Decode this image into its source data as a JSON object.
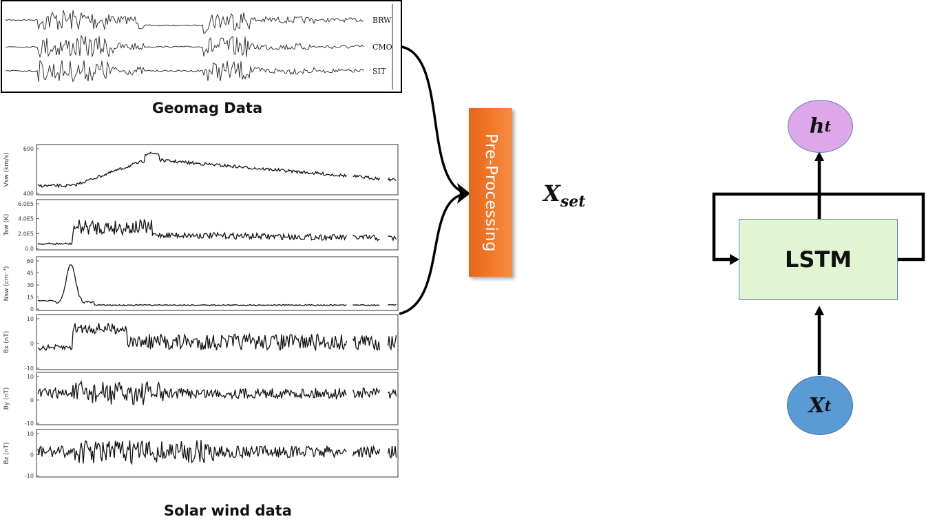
{
  "geomag": {
    "caption": "Geomag Data",
    "traces": [
      "BRW",
      "CMO",
      "SIT"
    ]
  },
  "solar": {
    "caption": "Solar wind data",
    "panels": [
      {
        "ylabel": "Vsw (km/s)",
        "ticks": [
          "600",
          "400"
        ]
      },
      {
        "ylabel": "Tsw (K)",
        "ticks": [
          "6.0E5",
          "4.0E5",
          "2.0E5",
          "0.0"
        ]
      },
      {
        "ylabel": "Nsw (cm⁻³)",
        "ticks": [
          "60",
          "45",
          "30",
          "15",
          "0"
        ]
      },
      {
        "ylabel": "Bx (nT)",
        "ticks": [
          "10",
          "0",
          "-10"
        ]
      },
      {
        "ylabel": "By (nT)",
        "ticks": [
          "10",
          "0",
          "-10"
        ]
      },
      {
        "ylabel": "Bz (nT)",
        "ticks": [
          "10",
          "0",
          "-10"
        ]
      }
    ]
  },
  "preprocessing": {
    "label": "Pre-Processing",
    "color": "#f07524"
  },
  "xset": {
    "base": "X",
    "sub": "set"
  },
  "lstm": {
    "label": "LSTM",
    "output": {
      "base": "h",
      "sub": "t",
      "color": "#dda7ea"
    },
    "input": {
      "base": "X",
      "sub": "t",
      "color": "#5b9bd5"
    },
    "box_color": "#e2f5d3"
  }
}
